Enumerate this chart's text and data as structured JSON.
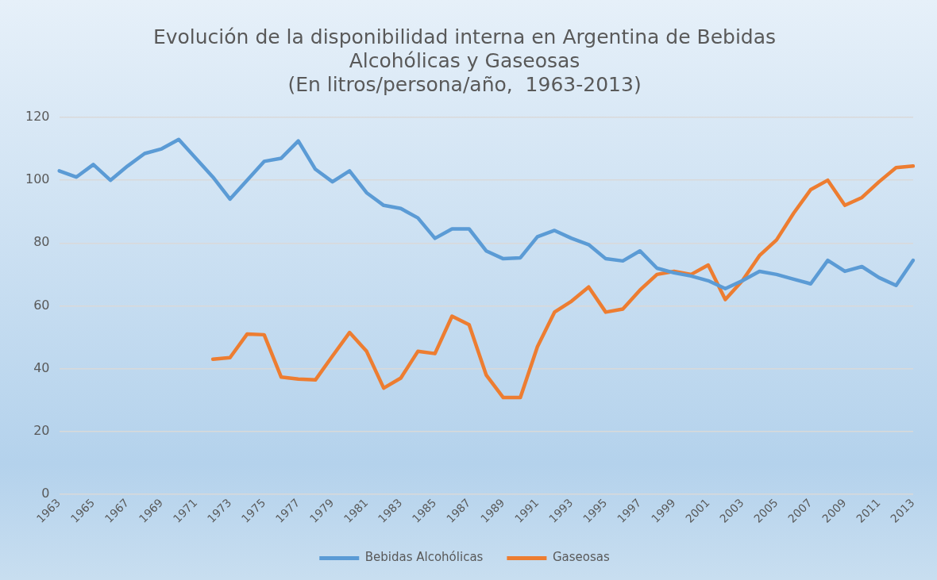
{
  "chart_data": {
    "type": "line",
    "title": [
      "Evolución de la disponibilidad interna en Argentina de Bebidas",
      "Alcohólicas y Gaseosas",
      "(En litros/persona/año,  1963-2013)"
    ],
    "categories": [
      "1963",
      null,
      "1965",
      null,
      "1967",
      null,
      "1969",
      null,
      "1971",
      null,
      "1973",
      null,
      "1975",
      null,
      "1977",
      null,
      "1979",
      null,
      "1981",
      null,
      "1983",
      null,
      "1985",
      null,
      "1987",
      null,
      "1989",
      null,
      "1991",
      null,
      "1993",
      null,
      "1995",
      null,
      "1997",
      null,
      "1999",
      null,
      "2001",
      null,
      "2003",
      null,
      "2005",
      null,
      "2007",
      null,
      "2009",
      null,
      "2011",
      null,
      "2013"
    ],
    "series": [
      {
        "name": "Bebidas Alcohólicas",
        "color": "#5b9bd5",
        "values": [
          103,
          101,
          105,
          100,
          104.5,
          108.5,
          110,
          113,
          107,
          101,
          94,
          100,
          106,
          107,
          112.5,
          103.5,
          99.5,
          103,
          96,
          92,
          91,
          88,
          81.5,
          84.5,
          84.5,
          77.5,
          75,
          75.3,
          82,
          84,
          81.5,
          79.5,
          75,
          74.3,
          77.5,
          72,
          70.5,
          69.5,
          68,
          65.5,
          68,
          71,
          70,
          68.5,
          67,
          74.5,
          71,
          72.5,
          69,
          66.5,
          74.5
        ]
      },
      {
        "name": "Gaseosas",
        "color": "#ed7d31",
        "values": [
          null,
          null,
          null,
          null,
          null,
          null,
          null,
          null,
          null,
          43,
          43.5,
          51,
          50.8,
          37.3,
          36.7,
          36.4,
          44,
          51.5,
          45.5,
          33.8,
          37,
          45.5,
          44.8,
          56.7,
          54,
          38,
          30.8,
          30.8,
          47,
          58,
          61.5,
          66,
          58,
          59,
          65,
          70,
          71,
          70,
          73,
          62,
          68,
          76,
          81,
          89.5,
          97,
          100,
          92,
          94.5,
          99.5,
          104,
          104.5
        ]
      }
    ],
    "ylim": [
      0,
      120
    ],
    "yticks": [
      0,
      20,
      40,
      60,
      80,
      100,
      120
    ],
    "grid": "y",
    "legend": "bottom",
    "marker": "none",
    "line_style": "solid"
  }
}
